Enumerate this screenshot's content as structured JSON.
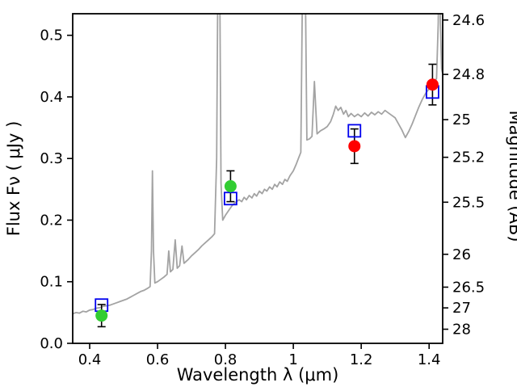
{
  "chart_data": {
    "type": "line",
    "title": "",
    "xlabel": "Wavelength λ (μm)",
    "ylabel_left": "Flux Fν ( μJy )",
    "ylabel_right": "Magnitude (AB)",
    "xlim": [
      0.35,
      1.44
    ],
    "ylim_flux": [
      0.0,
      0.535
    ],
    "grid": false,
    "legend": "none",
    "ab_zeropoint_mag_for_1uJy": 23.9,
    "x_ticks": [
      {
        "v": 0.4,
        "label": "0.4"
      },
      {
        "v": 0.6,
        "label": "0.6"
      },
      {
        "v": 0.8,
        "label": "0.8"
      },
      {
        "v": 1.0,
        "label": "1"
      },
      {
        "v": 1.2,
        "label": "1.2"
      },
      {
        "v": 1.4,
        "label": "1.4"
      }
    ],
    "y_ticks_flux": [
      {
        "v": 0.0,
        "label": "0.0"
      },
      {
        "v": 0.1,
        "label": "0.1"
      },
      {
        "v": 0.2,
        "label": "0.2"
      },
      {
        "v": 0.3,
        "label": "0.3"
      },
      {
        "v": 0.4,
        "label": "0.4"
      },
      {
        "v": 0.5,
        "label": "0.5"
      }
    ],
    "y_ticks_magnitude": [
      {
        "v": 24.6,
        "label": "24.6"
      },
      {
        "v": 24.8,
        "label": "24.8"
      },
      {
        "v": 25.0,
        "label": "25"
      },
      {
        "v": 25.2,
        "label": "25.2"
      },
      {
        "v": 25.5,
        "label": "25.5"
      },
      {
        "v": 26.0,
        "label": "26"
      },
      {
        "v": 26.5,
        "label": "26.5"
      },
      {
        "v": 27.0,
        "label": "27"
      },
      {
        "v": 28.0,
        "label": "28"
      }
    ],
    "colors": {
      "spectrum": "#a3a3a3",
      "observed_blue_band": "#32cd32",
      "observed_red_band": "#ff0000",
      "model_square": "#0000ee",
      "errorbar": "#000000",
      "axis": "#000000"
    },
    "spectrum": {
      "name": "model-spectrum",
      "x": [
        0.35,
        0.36,
        0.37,
        0.38,
        0.39,
        0.4,
        0.41,
        0.42,
        0.43,
        0.44,
        0.45,
        0.46,
        0.47,
        0.48,
        0.49,
        0.5,
        0.51,
        0.52,
        0.53,
        0.54,
        0.55,
        0.56,
        0.57,
        0.578,
        0.582,
        0.585,
        0.588,
        0.592,
        0.6,
        0.61,
        0.62,
        0.628,
        0.633,
        0.638,
        0.645,
        0.652,
        0.658,
        0.665,
        0.672,
        0.678,
        0.69,
        0.7,
        0.71,
        0.72,
        0.73,
        0.74,
        0.75,
        0.76,
        0.768,
        0.774,
        0.778,
        0.783,
        0.787,
        0.792,
        0.8,
        0.81,
        0.82,
        0.83,
        0.84,
        0.848,
        0.855,
        0.862,
        0.87,
        0.878,
        0.885,
        0.892,
        0.9,
        0.908,
        0.915,
        0.922,
        0.93,
        0.938,
        0.945,
        0.952,
        0.96,
        0.968,
        0.975,
        0.982,
        0.99,
        1.0,
        1.008,
        1.015,
        1.022,
        1.028,
        1.034,
        1.04,
        1.048,
        1.055,
        1.062,
        1.07,
        1.08,
        1.09,
        1.1,
        1.11,
        1.118,
        1.125,
        1.132,
        1.14,
        1.148,
        1.155,
        1.162,
        1.17,
        1.18,
        1.19,
        1.2,
        1.21,
        1.22,
        1.23,
        1.24,
        1.25,
        1.26,
        1.27,
        1.28,
        1.29,
        1.3,
        1.31,
        1.32,
        1.33,
        1.34,
        1.35,
        1.36,
        1.37,
        1.38,
        1.39,
        1.4,
        1.408,
        1.415,
        1.422,
        1.427,
        1.43,
        1.433,
        1.437,
        1.44
      ],
      "y": [
        0.048,
        0.05,
        0.049,
        0.052,
        0.051,
        0.054,
        0.055,
        0.057,
        0.058,
        0.06,
        0.061,
        0.062,
        0.064,
        0.066,
        0.068,
        0.07,
        0.072,
        0.075,
        0.078,
        0.081,
        0.084,
        0.086,
        0.089,
        0.092,
        0.15,
        0.28,
        0.15,
        0.098,
        0.1,
        0.104,
        0.108,
        0.112,
        0.15,
        0.116,
        0.12,
        0.168,
        0.122,
        0.126,
        0.158,
        0.13,
        0.136,
        0.142,
        0.147,
        0.152,
        0.158,
        0.163,
        0.168,
        0.173,
        0.178,
        0.3,
        0.62,
        0.62,
        0.26,
        0.2,
        0.208,
        0.216,
        0.224,
        0.229,
        0.233,
        0.23,
        0.237,
        0.233,
        0.24,
        0.236,
        0.243,
        0.239,
        0.247,
        0.243,
        0.25,
        0.247,
        0.254,
        0.25,
        0.258,
        0.254,
        0.262,
        0.258,
        0.266,
        0.263,
        0.272,
        0.28,
        0.29,
        0.3,
        0.31,
        0.64,
        0.66,
        0.33,
        0.332,
        0.336,
        0.425,
        0.34,
        0.345,
        0.348,
        0.352,
        0.36,
        0.372,
        0.385,
        0.378,
        0.383,
        0.372,
        0.378,
        0.368,
        0.373,
        0.368,
        0.372,
        0.368,
        0.374,
        0.369,
        0.375,
        0.371,
        0.376,
        0.372,
        0.378,
        0.374,
        0.37,
        0.366,
        0.356,
        0.346,
        0.334,
        0.344,
        0.356,
        0.37,
        0.384,
        0.396,
        0.406,
        0.413,
        0.418,
        0.424,
        0.43,
        0.52,
        0.7,
        0.52,
        0.445,
        0.438
      ]
    },
    "observed_photometry": [
      {
        "x": 0.435,
        "y": 0.045,
        "yerr": 0.018,
        "band_color": "#32cd32"
      },
      {
        "x": 0.815,
        "y": 0.255,
        "yerr": 0.025,
        "band_color": "#32cd32"
      },
      {
        "x": 1.18,
        "y": 0.32,
        "yerr": 0.028,
        "band_color": "#ff0000"
      },
      {
        "x": 1.41,
        "y": 0.42,
        "yerr": 0.033,
        "band_color": "#ff0000"
      }
    ],
    "model_photometry": [
      {
        "x": 0.435,
        "y": 0.062
      },
      {
        "x": 0.815,
        "y": 0.235
      },
      {
        "x": 1.18,
        "y": 0.345
      },
      {
        "x": 1.41,
        "y": 0.408
      }
    ]
  }
}
